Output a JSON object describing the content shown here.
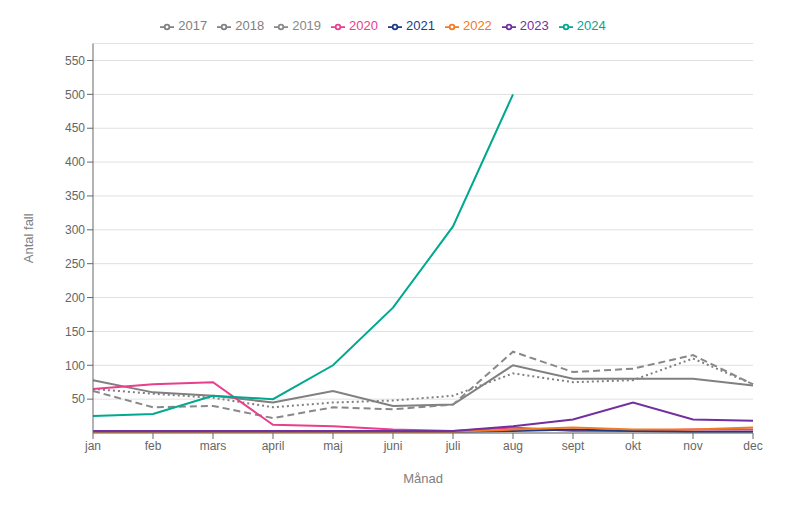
{
  "chart_data": {
    "type": "line",
    "categories": [
      "jan",
      "feb",
      "mars",
      "april",
      "maj",
      "juni",
      "juli",
      "aug",
      "sept",
      "okt",
      "nov",
      "dec"
    ],
    "series": [
      {
        "name": "2017",
        "color": "#808080",
        "line_style": "solid",
        "values": [
          78,
          60,
          55,
          45,
          62,
          40,
          42,
          100,
          80,
          80,
          80,
          70
        ]
      },
      {
        "name": "2018",
        "color": "#808080",
        "line_style": "dotted",
        "values": [
          65,
          58,
          52,
          38,
          45,
          48,
          55,
          88,
          75,
          78,
          110,
          72
        ]
      },
      {
        "name": "2019",
        "color": "#888888",
        "line_style": "dashed",
        "values": [
          62,
          38,
          40,
          22,
          38,
          35,
          42,
          120,
          90,
          95,
          115,
          72
        ]
      },
      {
        "name": "2020",
        "color": "#e83e8c",
        "line_style": "solid",
        "values": [
          65,
          72,
          75,
          12,
          10,
          5,
          3,
          8,
          3,
          3,
          5,
          5
        ]
      },
      {
        "name": "2021",
        "color": "#1a3b8b",
        "line_style": "solid",
        "values": [
          2,
          2,
          2,
          2,
          2,
          2,
          2,
          3,
          5,
          3,
          2,
          2
        ]
      },
      {
        "name": "2022",
        "color": "#f47920",
        "line_style": "solid",
        "values": [
          2,
          2,
          2,
          2,
          2,
          2,
          2,
          5,
          8,
          5,
          5,
          8
        ]
      },
      {
        "name": "2023",
        "color": "#7030a0",
        "line_style": "solid",
        "values": [
          3,
          3,
          3,
          3,
          3,
          3,
          3,
          10,
          20,
          45,
          20,
          18
        ]
      },
      {
        "name": "2024",
        "color": "#00a88f",
        "line_style": "solid",
        "values": [
          25,
          28,
          55,
          50,
          100,
          185,
          305,
          500,
          null,
          null,
          null,
          null
        ]
      }
    ],
    "xlabel": "Månad",
    "ylabel": "Antal fall",
    "ylim": [
      0,
      575
    ],
    "yticks": [
      50,
      100,
      150,
      200,
      250,
      300,
      350,
      400,
      450,
      500,
      550
    ],
    "grid": "y",
    "legend": "top"
  }
}
